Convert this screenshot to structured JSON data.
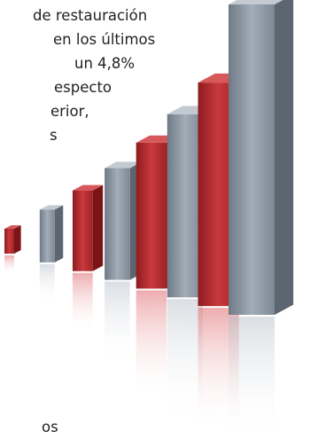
{
  "text": {
    "line1": "de restauración",
    "line2": "en los últimos",
    "line3": "un 4,8%",
    "line4": "especto",
    "line5": "erior,",
    "line6": "s",
    "line7": "os"
  },
  "image": {
    "front_colors": [
      "#b72a2e",
      "#8f9aa6",
      "#b72a2e",
      "#8f9aa6",
      "#b72a2e",
      "#8f9aa6",
      "#b72a2e",
      "#8f9aa6"
    ],
    "relative_heights": [
      0.08,
      0.17,
      0.26,
      0.36,
      0.47,
      0.59,
      0.72,
      1.0
    ]
  }
}
